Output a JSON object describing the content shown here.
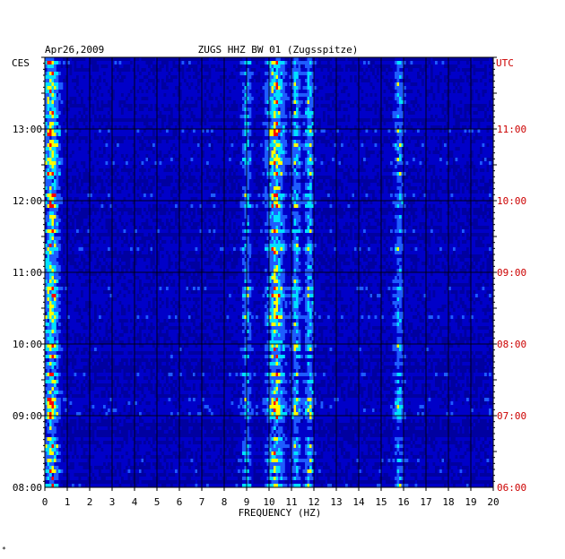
{
  "header": {
    "date": "Apr26,2009",
    "station": "ZUGS HHZ BW 01 (Zugsspitze)",
    "left_zone": "CES",
    "right_zone": "UTC"
  },
  "footer_mark": "*",
  "colors": {
    "background": "#0000c8",
    "low": "#0000a0",
    "mid": "#1e5cff",
    "high": "#00e0ff",
    "peak": "#ffff00",
    "max": "#ff0000",
    "right_axis": "#cc0000"
  },
  "chart_data": {
    "type": "heatmap",
    "title": "ZUGS HHZ BW 01 (Zugsspitze)",
    "date": "Apr26,2009",
    "xlabel": "FREQUENCY (HZ)",
    "xlim": [
      0,
      20
    ],
    "x_ticks": [
      "0",
      "1",
      "2",
      "3",
      "4",
      "5",
      "6",
      "7",
      "8",
      "9",
      "10",
      "11",
      "12",
      "13",
      "14",
      "15",
      "16",
      "17",
      "18",
      "19",
      "20"
    ],
    "y_left_label": "CES",
    "y_right_label": "UTC",
    "y_left_ticks": [
      "13:00",
      "12:00",
      "11:00",
      "10:00",
      "09:00",
      "08:00"
    ],
    "y_right_ticks": [
      "11:00",
      "10:00",
      "09:00",
      "08:00",
      "07:00",
      "06:00"
    ],
    "time_range_ces": [
      "08:00",
      "14:00"
    ],
    "grid": true,
    "bands_hz": [
      {
        "center": 0.3,
        "width": 0.5,
        "level": 0.95
      },
      {
        "center": 9.0,
        "width": 0.3,
        "level": 0.55
      },
      {
        "center": 10.3,
        "width": 0.6,
        "level": 0.9
      },
      {
        "center": 11.2,
        "width": 0.3,
        "level": 0.65
      },
      {
        "center": 11.8,
        "width": 0.3,
        "level": 0.7
      },
      {
        "center": 15.8,
        "width": 0.3,
        "level": 0.55
      }
    ]
  }
}
